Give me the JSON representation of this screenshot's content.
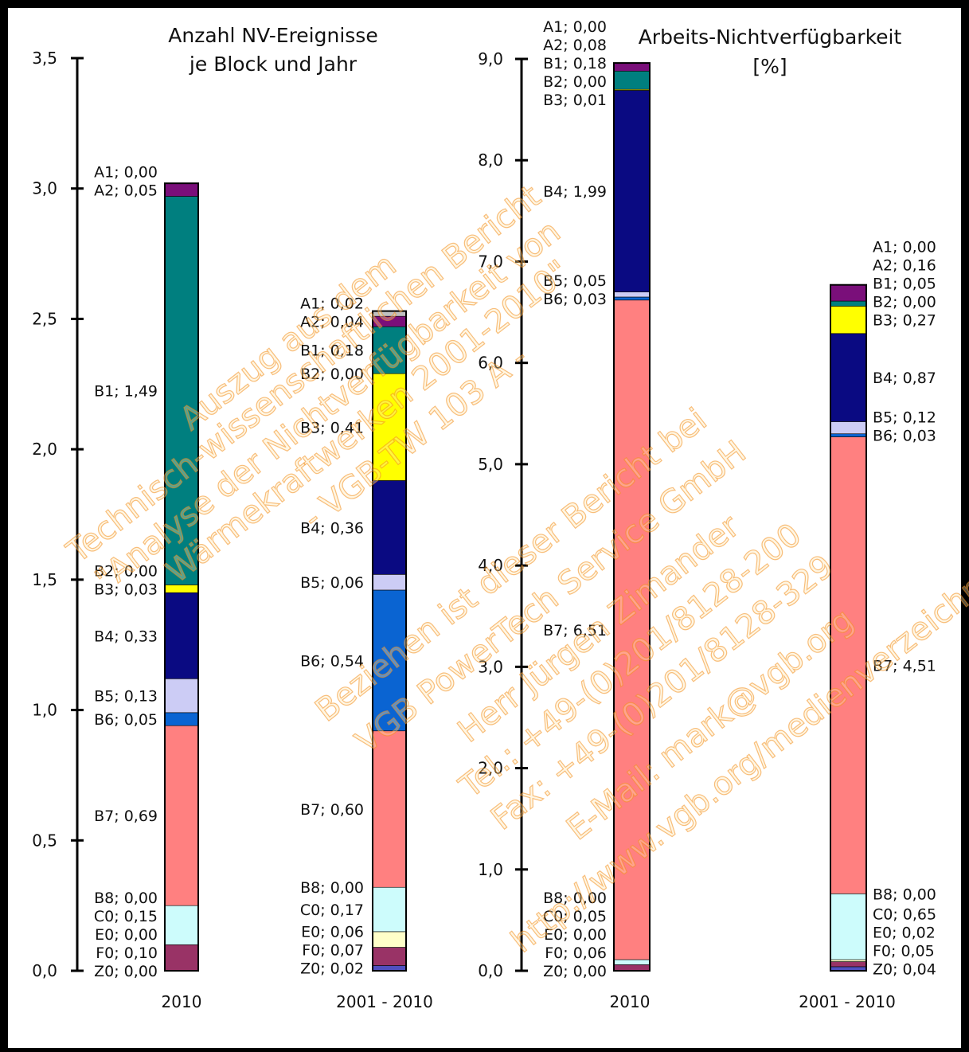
{
  "colors": {
    "A1": "#c0c0c0",
    "A2": "#7a0f7a",
    "B1": "#007f7f",
    "B2": "#0050b4",
    "B3": "#ffff00",
    "B4": "#0a0a82",
    "B5": "#ccccf5",
    "B6": "#0a64d2",
    "B7": "#ff8080",
    "B8": "#c8a0c8",
    "C0": "#cdfcfc",
    "E0": "#ffffc8",
    "F0": "#993366",
    "Z0": "#5050c0"
  },
  "watermark": [
    "Auszug aus dem",
    "Technisch-wissenschaftlichen Bericht",
    "\"Analyse der Nichtverfügbarkeit von",
    "Wärmekraftwerken 2001-2010\"",
    "- VGB-TW 103 A -",
    "Beziehen ist dieser Bericht bei",
    "VGB PowerTech Service GmbH",
    "Herr Jürgen Zimander",
    "Tel.: +49-(0)201/8128-200",
    "Fax: +49-(0)201/8128-329",
    "E-Mail: mark@vgb.org",
    "http://www.vgb.org/medienverzeichnis"
  ],
  "chart_data": [
    {
      "type": "bar",
      "stacked": true,
      "title": "Anzahl NV-Ereignisse je Block und Jahr",
      "title_lines": [
        "Anzahl NV-Ereignisse",
        "je Block und Jahr"
      ],
      "ylim": [
        0,
        3.5
      ],
      "yticks": [
        "0,0",
        "0,5",
        "1,0",
        "1,5",
        "2,0",
        "2,5",
        "3,0",
        "3,5"
      ],
      "ytick_values": [
        0,
        0.5,
        1.0,
        1.5,
        2.0,
        2.5,
        3.0,
        3.5
      ],
      "categories": [
        "2010",
        "2001 - 2010"
      ],
      "bars": [
        {
          "category": "2010",
          "segments": [
            {
              "code": "Z0",
              "value": 0.0,
              "label": "Z0; 0,00"
            },
            {
              "code": "F0",
              "value": 0.1,
              "label": "F0; 0,10"
            },
            {
              "code": "E0",
              "value": 0.0,
              "label": "E0; 0,00"
            },
            {
              "code": "C0",
              "value": 0.15,
              "label": "C0; 0,15"
            },
            {
              "code": "B8",
              "value": 0.0,
              "label": "B8; 0,00"
            },
            {
              "code": "B7",
              "value": 0.69,
              "label": "B7; 0,69"
            },
            {
              "code": "B6",
              "value": 0.05,
              "label": "B6; 0,05"
            },
            {
              "code": "B5",
              "value": 0.13,
              "label": "B5; 0,13"
            },
            {
              "code": "B4",
              "value": 0.33,
              "label": "B4; 0,33"
            },
            {
              "code": "B3",
              "value": 0.03,
              "label": "B3; 0,03"
            },
            {
              "code": "B2",
              "value": 0.0,
              "label": "B2; 0,00"
            },
            {
              "code": "B1",
              "value": 1.49,
              "label": "B1; 1,49"
            },
            {
              "code": "A2",
              "value": 0.05,
              "label": "A2; 0,05"
            },
            {
              "code": "A1",
              "value": 0.0,
              "label": "A1; 0,00"
            }
          ]
        },
        {
          "category": "2001 - 2010",
          "segments": [
            {
              "code": "Z0",
              "value": 0.02,
              "label": "Z0; 0,02"
            },
            {
              "code": "F0",
              "value": 0.07,
              "label": "F0; 0,07"
            },
            {
              "code": "E0",
              "value": 0.06,
              "label": "E0; 0,06"
            },
            {
              "code": "C0",
              "value": 0.17,
              "label": "C0; 0,17"
            },
            {
              "code": "B8",
              "value": 0.0,
              "label": "B8; 0,00"
            },
            {
              "code": "B7",
              "value": 0.6,
              "label": "B7; 0,60"
            },
            {
              "code": "B6",
              "value": 0.54,
              "label": "B6; 0,54"
            },
            {
              "code": "B5",
              "value": 0.06,
              "label": "B5; 0,06"
            },
            {
              "code": "B4",
              "value": 0.36,
              "label": "B4; 0,36"
            },
            {
              "code": "B3",
              "value": 0.41,
              "label": "B3; 0,41"
            },
            {
              "code": "B2",
              "value": 0.0,
              "label": "B2; 0,00"
            },
            {
              "code": "B1",
              "value": 0.18,
              "label": "B1; 0,18"
            },
            {
              "code": "A2",
              "value": 0.04,
              "label": "A2; 0,04"
            },
            {
              "code": "A1",
              "value": 0.02,
              "label": "A1; 0,02"
            }
          ]
        }
      ]
    },
    {
      "type": "bar",
      "stacked": true,
      "title": "Arbeits-Nichtverfügbarkeit [%]",
      "title_lines": [
        "Arbeits-Nichtverfügbarkeit",
        "[%]"
      ],
      "ylim": [
        0,
        9.0
      ],
      "yticks": [
        "0,0",
        "1,0",
        "2,0",
        "3,0",
        "4,0",
        "5,0",
        "6,0",
        "7,0",
        "8,0",
        "9,0"
      ],
      "ytick_values": [
        0,
        1,
        2,
        3,
        4,
        5,
        6,
        7,
        8,
        9
      ],
      "categories": [
        "2010",
        "2001 - 2010"
      ],
      "bars": [
        {
          "category": "2010",
          "segments": [
            {
              "code": "Z0",
              "value": 0.0,
              "label": "Z0; 0,00"
            },
            {
              "code": "F0",
              "value": 0.06,
              "label": "F0; 0,06"
            },
            {
              "code": "E0",
              "value": 0.0,
              "label": "E0; 0,00"
            },
            {
              "code": "C0",
              "value": 0.05,
              "label": "C0; 0,05"
            },
            {
              "code": "B8",
              "value": 0.0,
              "label": "B8; 0,00"
            },
            {
              "code": "B7",
              "value": 6.51,
              "label": "B7; 6,51"
            },
            {
              "code": "B6",
              "value": 0.03,
              "label": "B6; 0,03"
            },
            {
              "code": "B5",
              "value": 0.05,
              "label": "B5; 0,05"
            },
            {
              "code": "B4",
              "value": 1.99,
              "label": "B4; 1,99"
            },
            {
              "code": "B3",
              "value": 0.01,
              "label": "B3; 0,01"
            },
            {
              "code": "B2",
              "value": 0.0,
              "label": "B2; 0,00"
            },
            {
              "code": "B1",
              "value": 0.18,
              "label": "B1; 0,18"
            },
            {
              "code": "A2",
              "value": 0.08,
              "label": "A2; 0,08"
            },
            {
              "code": "A1",
              "value": 0.0,
              "label": "A1; 0,00"
            }
          ]
        },
        {
          "category": "2001 - 2010",
          "segments": [
            {
              "code": "Z0",
              "value": 0.04,
              "label": "Z0; 0,04"
            },
            {
              "code": "F0",
              "value": 0.05,
              "label": "F0; 0,05"
            },
            {
              "code": "E0",
              "value": 0.02,
              "label": "E0; 0,02"
            },
            {
              "code": "C0",
              "value": 0.65,
              "label": "C0; 0,65"
            },
            {
              "code": "B8",
              "value": 0.0,
              "label": "B8; 0,00"
            },
            {
              "code": "B7",
              "value": 4.51,
              "label": "B7; 4,51"
            },
            {
              "code": "B6",
              "value": 0.03,
              "label": "B6; 0,03"
            },
            {
              "code": "B5",
              "value": 0.12,
              "label": "B5; 0,12"
            },
            {
              "code": "B4",
              "value": 0.87,
              "label": "B4; 0,87"
            },
            {
              "code": "B3",
              "value": 0.27,
              "label": "B3; 0,27"
            },
            {
              "code": "B2",
              "value": 0.0,
              "label": "B2; 0,00"
            },
            {
              "code": "B1",
              "value": 0.05,
              "label": "B1; 0,05"
            },
            {
              "code": "A2",
              "value": 0.16,
              "label": "A2; 0,16"
            },
            {
              "code": "A1",
              "value": 0.0,
              "label": "A1; 0,00"
            }
          ]
        }
      ]
    }
  ]
}
